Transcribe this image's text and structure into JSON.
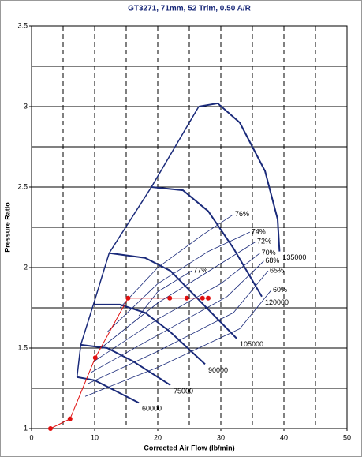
{
  "chart_data": {
    "type": "line",
    "title": "GT3271, 71mm, 52 Trim, 0.50 A/R",
    "x_label": "Corrected Air Flow (lb/min)",
    "y_label": "Pressure Ratio",
    "xlim": [
      0,
      50
    ],
    "ylim": [
      1,
      3.5
    ],
    "xticks": [
      0,
      10,
      20,
      30,
      40,
      50
    ],
    "yticks": [
      1,
      1.5,
      2,
      2.5,
      3,
      3.5
    ],
    "xgrid": [
      5,
      10,
      15,
      20,
      25,
      30,
      35,
      40,
      45
    ],
    "ygrid": [
      1.25,
      1.5,
      1.75,
      2,
      2.25,
      2.5,
      2.75,
      3,
      3.25
    ],
    "speed_color": "#1a2a7a",
    "efficiency_color": "#1a2a7a",
    "speed_lines": [
      {
        "name": "60000",
        "x": [
          7.2,
          10,
          13,
          17
        ],
        "y": [
          1.32,
          1.3,
          1.24,
          1.16
        ]
      },
      {
        "name": "75000",
        "x": [
          7.8,
          12,
          16,
          20,
          22
        ],
        "y": [
          1.52,
          1.5,
          1.42,
          1.32,
          1.27
        ]
      },
      {
        "name": "90000",
        "x": [
          9.8,
          14,
          18,
          22,
          27.5
        ],
        "y": [
          1.77,
          1.77,
          1.72,
          1.6,
          1.4
        ]
      },
      {
        "name": "105000",
        "x": [
          12.3,
          18,
          22,
          26,
          32.5
        ],
        "y": [
          2.09,
          2.06,
          1.98,
          1.82,
          1.56
        ]
      },
      {
        "name": "120000",
        "x": [
          19,
          24,
          28,
          32,
          36.5
        ],
        "y": [
          2.5,
          2.48,
          2.35,
          2.12,
          1.82
        ]
      },
      {
        "name": "135000",
        "x": [
          26.5,
          29.5,
          33,
          37,
          39,
          39.3
        ],
        "y": [
          3.0,
          3.02,
          2.9,
          2.6,
          2.3,
          2.1
        ]
      }
    ],
    "surge_line": {
      "x": [
        7.2,
        7.8,
        9.8,
        12.3,
        19,
        26.5
      ],
      "y": [
        1.32,
        1.52,
        1.77,
        2.09,
        2.5,
        3.0
      ]
    },
    "efficiency_lines": [
      {
        "name": "77%",
        "x": [
          17,
          20,
          25.4
        ],
        "y": [
          1.7,
          1.85,
          1.98
        ]
      },
      {
        "name": "76%",
        "x": [
          14,
          20,
          27,
          32
        ],
        "y": [
          1.75,
          2.0,
          2.2,
          2.33
        ]
      },
      {
        "name": "74%",
        "x": [
          12,
          20,
          28,
          34.6
        ],
        "y": [
          1.6,
          1.9,
          2.1,
          2.22
        ]
      },
      {
        "name": "72%",
        "x": [
          11,
          20,
          29,
          35.5
        ],
        "y": [
          1.5,
          1.78,
          2.0,
          2.16
        ]
      },
      {
        "name": "70%",
        "x": [
          10,
          20,
          30,
          36.2
        ],
        "y": [
          1.42,
          1.68,
          1.9,
          2.09
        ]
      },
      {
        "name": "68%",
        "x": [
          9.5,
          20,
          31,
          36.8
        ],
        "y": [
          1.35,
          1.58,
          1.82,
          2.04
        ]
      },
      {
        "name": "65%",
        "x": [
          9,
          20,
          32,
          37.5
        ],
        "y": [
          1.28,
          1.48,
          1.72,
          1.98
        ]
      },
      {
        "name": "60%",
        "x": [
          8.5,
          20,
          33,
          38
        ],
        "y": [
          1.2,
          1.38,
          1.62,
          1.86
        ]
      }
    ],
    "operating_points": {
      "color": "#e01010",
      "x": [
        3,
        6.1,
        10.1,
        15.3,
        21.9,
        24.6,
        27.1,
        28
      ],
      "y": [
        1.0,
        1.06,
        1.44,
        1.81,
        1.81,
        1.81,
        1.81,
        1.81
      ]
    }
  }
}
